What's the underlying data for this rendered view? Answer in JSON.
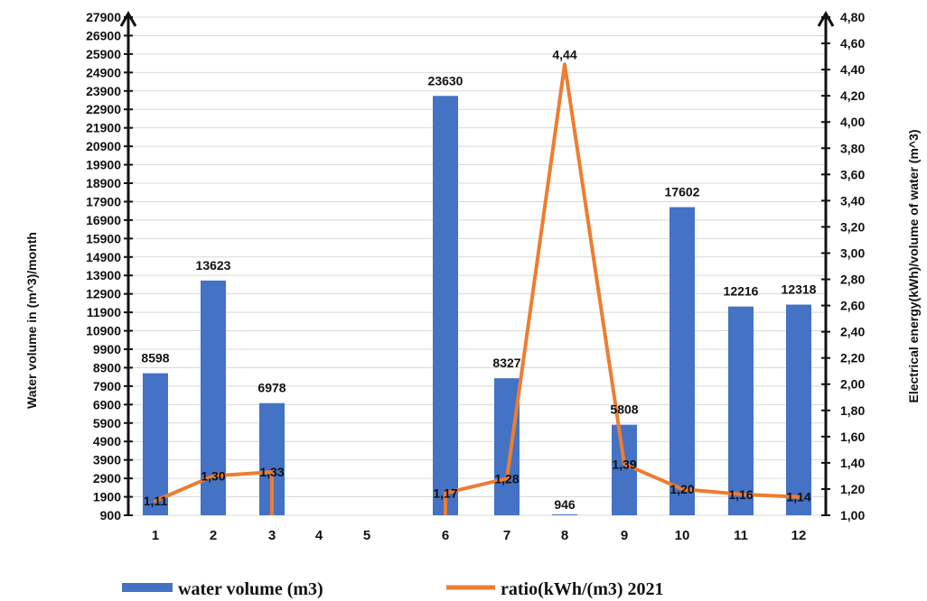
{
  "chart_data": {
    "type": "bar",
    "categories": [
      "1",
      "2",
      "3",
      "4",
      "5",
      "6",
      "7",
      "8",
      "9",
      "10",
      "11",
      "12"
    ],
    "series": [
      {
        "name": "water volume (m3)",
        "type": "bar",
        "axis": "left",
        "color": "#4472C4",
        "values": [
          8598,
          13623,
          6978,
          null,
          null,
          23630,
          8327,
          946,
          5808,
          17602,
          12216,
          12318
        ],
        "labels": [
          "8598",
          "13623",
          "6978",
          "",
          "",
          "23630",
          "8327",
          "946",
          "5808",
          "17602",
          "12216",
          "12318"
        ]
      },
      {
        "name": "ratio(kWh/(m3) 2021",
        "type": "line",
        "axis": "right",
        "color": "#ED7D31",
        "values": [
          1.11,
          1.3,
          1.33,
          null,
          null,
          1.17,
          1.28,
          4.44,
          1.39,
          1.2,
          1.16,
          1.14
        ],
        "labels": [
          "1,11",
          "1,30",
          "1,33",
          "",
          "",
          "1,17",
          "1,28",
          "4,44",
          "1,39",
          "1,20",
          "1,16",
          "1,14"
        ]
      }
    ],
    "ylabel": "Water volume in (m^3)/month",
    "y2label": "Electrical energy(kWh)/volume of water (m^3)",
    "ylim": [
      900,
      27900
    ],
    "y2lim": [
      1.0,
      4.8
    ],
    "yticks": [
      "900",
      "1900",
      "2900",
      "3900",
      "4900",
      "5900",
      "6900",
      "7900",
      "8900",
      "9900",
      "10900",
      "11900",
      "12900",
      "13900",
      "14900",
      "15900",
      "16900",
      "17900",
      "18900",
      "19900",
      "20900",
      "21900",
      "22900",
      "23900",
      "24900",
      "25900",
      "26900",
      "27900"
    ],
    "y2ticks": [
      "1,00",
      "1,20",
      "1,40",
      "1,60",
      "1,80",
      "2,00",
      "2,20",
      "2,40",
      "2,60",
      "2,80",
      "3,00",
      "3,20",
      "3,40",
      "3,60",
      "3,80",
      "4,00",
      "4,20",
      "4,40",
      "4,60",
      "4,80"
    ],
    "grid": true,
    "legend_position": "bottom"
  }
}
